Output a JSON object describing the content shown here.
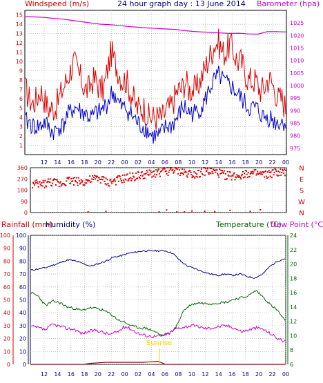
{
  "colors": {
    "wind_avg": "#0000cc",
    "wind_gust": "#dd0000",
    "barometer": "#cc00cc",
    "direction": "#dd0000",
    "humidity": "#000088",
    "temperature": "#006600",
    "dew_point": "#cc00cc",
    "rainfall": "#880000",
    "sunrise": "#ffcc00",
    "grid": "#aaaaaa"
  },
  "titles": {
    "windspeed": "Windspeed (m/s)",
    "graph": "24 hour graph day : 13 June 2014",
    "barometer": "Barometer (hpa)",
    "rainfall": "Rainfall (mm)",
    "humidity": "Humidity (%)",
    "temperature": "Temperature (°C)",
    "dew_point": "Dew Point (°C)",
    "sunrise": "Sunrise"
  },
  "chart_data": [
    {
      "type": "line",
      "name": "wind-panel",
      "x_ticks": [
        "12",
        "14",
        "16",
        "18",
        "20",
        "22",
        "00",
        "02",
        "04",
        "06",
        "08",
        "10",
        "12",
        "14",
        "16",
        "18",
        "20",
        "22",
        "00"
      ],
      "left_axis": {
        "label": "Windspeed (m/s)",
        "ticks": [
          1,
          2,
          3,
          4,
          5,
          6,
          7,
          8,
          9,
          10,
          11,
          12,
          13,
          14,
          15
        ],
        "ylim": [
          0,
          15.5
        ]
      },
      "right_axis": {
        "label": "Barometer (hpa)",
        "ticks": [
          975,
          980,
          985,
          990,
          995,
          1000,
          1005,
          1010,
          1015,
          1020,
          1025
        ],
        "ylim": [
          972.5,
          1030
        ]
      },
      "series": [
        {
          "key": "wind_gust",
          "axis": "left",
          "values": [
            7,
            6,
            5.5,
            6,
            7,
            6,
            5,
            5,
            5,
            6,
            7,
            8,
            9,
            10,
            9,
            8,
            7,
            7,
            8,
            8,
            7,
            7,
            9,
            11,
            10,
            9,
            8,
            8,
            7,
            6,
            5,
            5,
            5,
            4,
            4,
            4,
            4,
            4,
            5,
            5,
            6,
            7,
            7,
            8,
            7,
            7,
            7,
            8,
            9,
            10,
            11,
            12,
            12,
            11,
            11,
            12,
            11,
            10,
            10,
            9,
            8,
            8,
            8,
            7,
            7,
            8,
            8,
            7,
            6,
            6,
            5
          ]
        },
        {
          "key": "wind_avg",
          "axis": "left",
          "values": [
            3.5,
            3.5,
            3,
            3,
            3,
            3.5,
            3,
            2.5,
            2.5,
            3,
            3,
            4,
            4.5,
            5,
            5,
            4.5,
            4.5,
            4,
            4,
            4.5,
            4.5,
            5,
            5.5,
            6.5,
            6.5,
            5.5,
            5,
            5,
            4.5,
            4,
            3.5,
            3,
            3,
            2.5,
            2,
            2,
            2,
            2.5,
            3,
            3,
            3.5,
            4,
            5,
            5,
            4.5,
            4.5,
            4.5,
            5,
            5.5,
            6.5,
            7.5,
            8,
            8.5,
            8,
            7.5,
            7.5,
            7,
            6.5,
            6,
            5.5,
            5,
            5,
            5,
            4.5,
            4,
            4,
            4,
            3.5,
            3.5,
            3.5,
            3.5
          ]
        },
        {
          "key": "barometer",
          "axis": "right",
          "values": [
            1027.5,
            1027.4,
            1027.2,
            1026.8,
            1026.5,
            1026,
            1025.5,
            1025,
            1024.5,
            1024.3,
            1024,
            1023.6,
            1023.3,
            1023,
            1022.8,
            1022.6,
            1022.4,
            1022,
            1021.6,
            1021.4,
            1021.2,
            1021,
            1020.8,
            1020.9,
            1020.6,
            1020.5,
            1021.5,
            1021.5,
            1021.4
          ]
        }
      ]
    },
    {
      "type": "scatter",
      "name": "wind-direction-panel",
      "left_axis": {
        "ticks": [
          0,
          90,
          180,
          270,
          360
        ]
      },
      "right_axis": {
        "ticks": [
          "N",
          "W",
          "S",
          "E",
          "N"
        ]
      },
      "points": [
        [
          0.04,
          225
        ],
        [
          0.07,
          245
        ],
        [
          0.11,
          230
        ],
        [
          0.14,
          260
        ],
        [
          0.2,
          245
        ],
        [
          0.22,
          255
        ],
        [
          0.26,
          275
        ],
        [
          0.3,
          240
        ],
        [
          0.36,
          270
        ],
        [
          0.4,
          290
        ],
        [
          0.44,
          300
        ],
        [
          0.48,
          315
        ],
        [
          0.52,
          330
        ],
        [
          0.56,
          340
        ],
        [
          0.6,
          320
        ],
        [
          0.64,
          310
        ],
        [
          0.68,
          330
        ],
        [
          0.72,
          325
        ],
        [
          0.76,
          300
        ],
        [
          0.8,
          290
        ],
        [
          0.84,
          315
        ],
        [
          0.88,
          310
        ],
        [
          0.92,
          300
        ],
        [
          0.96,
          320
        ]
      ],
      "stray": [
        [
          0.22,
          5
        ],
        [
          0.29,
          10
        ],
        [
          0.5,
          5
        ],
        [
          0.53,
          20
        ],
        [
          0.57,
          5
        ],
        [
          0.6,
          5
        ],
        [
          0.63,
          12
        ],
        [
          0.68,
          10
        ],
        [
          0.72,
          8
        ],
        [
          0.78,
          18
        ],
        [
          0.86,
          10
        ],
        [
          0.9,
          22
        ]
      ]
    },
    {
      "type": "line",
      "name": "weather-panel",
      "x_ticks": [
        "12",
        "14",
        "16",
        "18",
        "20",
        "22",
        "00",
        "02",
        "04",
        "06",
        "08",
        "10",
        "12",
        "14",
        "16",
        "18",
        "20",
        "22",
        "00"
      ],
      "left_axis": {
        "label": "Rainfall (mm)",
        "ticks": [
          0,
          10,
          20,
          30,
          40,
          50,
          60,
          70,
          80,
          90,
          100
        ]
      },
      "left_axis_2": {
        "label": "Humidity (%)",
        "ticks": [
          0,
          10,
          20,
          30,
          40,
          50,
          60,
          70,
          80,
          90,
          100
        ]
      },
      "right_axis": {
        "label": "Temperature (°C)",
        "ticks": [
          6,
          8,
          10,
          12,
          14,
          16,
          18,
          20,
          22,
          24
        ]
      },
      "series": [
        {
          "key": "humidity",
          "axis": "left",
          "values": [
            73,
            74,
            75,
            77,
            79,
            81,
            80,
            78,
            76,
            78,
            80,
            83,
            84,
            86,
            87,
            88,
            88,
            88,
            88,
            86,
            80,
            76,
            74,
            72,
            70,
            69,
            70,
            69,
            70,
            68,
            67,
            70,
            76,
            80,
            82
          ]
        },
        {
          "key": "temperature",
          "axis": "right",
          "values": [
            16.0,
            15.5,
            14.2,
            14.8,
            14.6,
            14.0,
            13.8,
            13.5,
            13.9,
            13.8,
            13.5,
            13.0,
            12.2,
            11.8,
            11.3,
            11.1,
            11.0,
            10.6,
            10.0,
            10.3,
            11.2,
            13.5,
            14.3,
            14.6,
            14.5,
            14.5,
            14.6,
            14.7,
            15.1,
            15.3,
            15.6,
            16.3,
            15.4,
            14.3,
            13.5,
            12.0
          ]
        },
        {
          "key": "dew_point",
          "axis": "right",
          "values": [
            11.3,
            11.1,
            10.8,
            11.6,
            11.3,
            11.0,
            10.9,
            10.3,
            10.6,
            10.8,
            10.4,
            10.2,
            10.6,
            11.3,
            10.8,
            10.2,
            10.0,
            9.9,
            10.0,
            10.3,
            11.0,
            11.2,
            11.4,
            11.3,
            11.0,
            11.1,
            11.3,
            11.4,
            11.1,
            10.6,
            10.8,
            11.1,
            10.9,
            10.3,
            9.6,
            9.2
          ]
        },
        {
          "key": "rainfall",
          "axis": "left",
          "values": [
            0,
            0,
            0,
            0,
            0,
            0,
            0,
            0,
            2,
            3,
            4,
            4,
            4,
            4,
            4,
            4,
            5,
            6,
            0,
            0,
            0,
            0,
            0,
            0,
            0,
            0,
            0,
            0,
            0,
            0,
            0,
            0,
            0,
            0,
            0
          ]
        }
      ]
    }
  ]
}
